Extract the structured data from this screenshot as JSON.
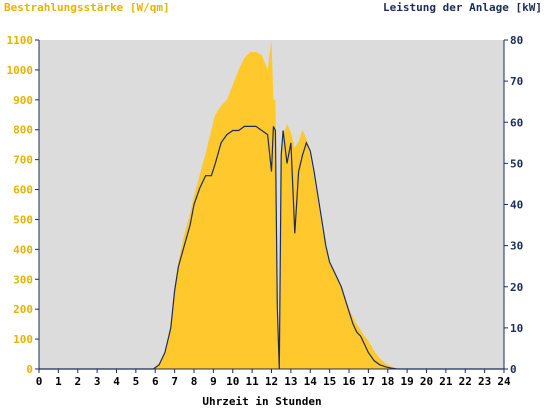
{
  "chart_data": {
    "type": "area",
    "title": "",
    "left_axis_title": "Bestrahlungsstärke [W/qm]",
    "right_axis_title": "Leistung der Anlage [kW]",
    "xlabel": "Uhrzeit in Stunden",
    "xlim": [
      0,
      24
    ],
    "ylim_left": [
      0,
      1100
    ],
    "ylim_right": [
      0,
      80
    ],
    "x_ticks": [
      "0",
      "1",
      "2",
      "3",
      "4",
      "5",
      "6",
      "7",
      "8",
      "9",
      "10",
      "11",
      "12",
      "13",
      "14",
      "15",
      "16",
      "17",
      "18",
      "19",
      "20",
      "21",
      "22",
      "23",
      "24"
    ],
    "y_left_ticks": [
      "0",
      "100",
      "200",
      "300",
      "400",
      "500",
      "600",
      "700",
      "800",
      "900",
      "1000",
      "1100"
    ],
    "y_right_ticks": [
      "0",
      "10",
      "20",
      "30",
      "40",
      "50",
      "60",
      "70",
      "80"
    ],
    "grid": false,
    "colors": {
      "irradiance": "#ffc82d",
      "power": "#1c2d5a",
      "plot_background": "#dcdcdc",
      "left_axis_text": "#e6b400",
      "right_axis_text": "#1c2d5a"
    },
    "series": [
      {
        "name": "Bestrahlungsstärke",
        "axis": "left",
        "x": [
          0,
          5.9,
          6.2,
          6.5,
          6.8,
          7.0,
          7.2,
          7.5,
          7.8,
          8.0,
          8.3,
          8.6,
          8.9,
          9.1,
          9.4,
          9.7,
          10.0,
          10.3,
          10.6,
          10.9,
          11.2,
          11.5,
          11.8,
          12.0,
          12.1,
          12.2,
          12.3,
          12.4,
          12.5,
          12.6,
          12.8,
          13.0,
          13.2,
          13.4,
          13.6,
          13.8,
          14.0,
          14.2,
          14.4,
          14.6,
          14.8,
          15.0,
          15.2,
          15.4,
          15.6,
          15.8,
          16.0,
          16.2,
          16.4,
          16.6,
          16.8,
          17.0,
          17.3,
          17.6,
          17.9,
          18.2,
          18.5,
          18.8,
          19.0,
          24
        ],
        "values": [
          0,
          0,
          20,
          60,
          150,
          280,
          360,
          450,
          520,
          580,
          650,
          720,
          800,
          850,
          880,
          900,
          950,
          1000,
          1040,
          1060,
          1060,
          1050,
          1000,
          1100,
          900,
          900,
          240,
          0,
          660,
          780,
          820,
          790,
          740,
          760,
          800,
          770,
          710,
          640,
          560,
          470,
          410,
          360,
          330,
          300,
          270,
          240,
          200,
          175,
          150,
          130,
          110,
          95,
          60,
          35,
          18,
          8,
          3,
          0,
          0,
          0
        ]
      },
      {
        "name": "Leistung",
        "axis": "right",
        "x": [
          0,
          5.9,
          6.2,
          6.5,
          6.8,
          7.0,
          7.2,
          7.5,
          7.8,
          8.0,
          8.3,
          8.6,
          8.9,
          9.1,
          9.4,
          9.7,
          10.0,
          10.3,
          10.6,
          10.9,
          11.2,
          11.5,
          11.8,
          12.0,
          12.1,
          12.2,
          12.3,
          12.4,
          12.5,
          12.6,
          12.8,
          13.0,
          13.2,
          13.4,
          13.6,
          13.8,
          14.0,
          14.2,
          14.4,
          14.6,
          14.8,
          15.0,
          15.2,
          15.4,
          15.6,
          15.8,
          16.0,
          16.2,
          16.4,
          16.6,
          16.8,
          17.0,
          17.3,
          17.6,
          17.9,
          18.2,
          18.5,
          18.8,
          19.0,
          24
        ],
        "values": [
          0,
          0,
          1,
          4,
          10,
          19,
          25,
          30,
          35,
          40,
          44,
          47,
          47,
          50,
          55,
          57,
          58,
          58,
          59,
          59,
          59,
          58,
          57,
          48,
          59,
          58,
          15,
          0,
          52,
          58,
          50,
          55,
          33,
          48,
          52,
          55,
          53,
          48,
          42,
          36,
          30,
          26,
          24,
          22,
          20,
          17,
          14,
          11,
          9,
          8,
          6,
          4,
          2,
          1,
          0.5,
          0.2,
          0,
          0,
          0,
          0
        ]
      }
    ]
  }
}
